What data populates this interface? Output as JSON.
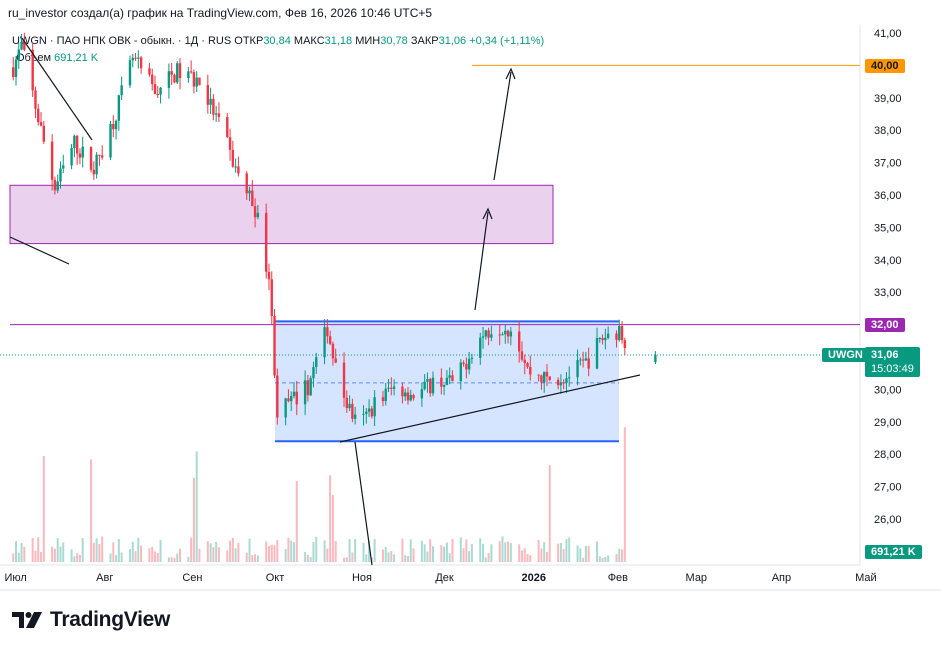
{
  "header": {
    "attribution": "ru_investor создал(а) график на TradingView.com, Фев 16, 2026 10:46 UTC+5"
  },
  "legend": {
    "symbol_line": "UWGN · ПАО НПК ОВК - обыкн. · 1Д · RUS",
    "open_label": "ОТКР",
    "open_value": "30,84",
    "high_label": "МАКС",
    "high_value": "31,18",
    "low_label": "МИН",
    "low_value": "30,78",
    "close_label": "ЗАКР",
    "close_value": "31,06",
    "change": "+0,34 (+1,11%)",
    "volume_label": "Объем",
    "volume_value": "691,21 K"
  },
  "price_axis": {
    "ticks": [
      "41,00",
      "40,00",
      "39,00",
      "38,00",
      "37,00",
      "36,00",
      "35,00",
      "34,00",
      "33,00",
      "32,00",
      "31,00",
      "30,00",
      "29,00",
      "28,00",
      "27,00",
      "26,00"
    ],
    "tag_40": "40,00",
    "tag_32": "32,00",
    "tag_symbol": "UWGN",
    "tag_last": "31,06",
    "tag_countdown": "15:03:49",
    "tag_volume": "691,21 K"
  },
  "time_axis": {
    "labels": [
      "Июл",
      "Авг",
      "Сен",
      "Окт",
      "Ноя",
      "Дек",
      "2026",
      "Фев",
      "Мар",
      "Апр",
      "Май"
    ]
  },
  "colors": {
    "up": "#089981",
    "down": "#f23645",
    "zone_fill": "#e1bee7",
    "zone_border": "#9c27b0",
    "channel_fill": "#cfe0ff",
    "channel_border": "#2962ff",
    "target_line": "#ff9800",
    "resistance_line": "#9c27b0"
  },
  "brand": {
    "logo_text": "TradingView"
  },
  "chart_data": {
    "type": "candlestick",
    "title": "UWGN · ПАО НПК ОВК - обыкн. · 1Д · RUS",
    "ylim": [
      25.5,
      41.2
    ],
    "y_ticks": [
      26,
      27,
      28,
      29,
      30,
      31,
      32,
      33,
      34,
      35,
      36,
      37,
      38,
      39,
      40,
      41
    ],
    "x_labels": [
      "Июл",
      "Авг",
      "Сен",
      "Окт",
      "Ноя",
      "Дек",
      "2026",
      "Фев",
      "Мар",
      "Апр",
      "Май"
    ],
    "last": {
      "open": 30.84,
      "high": 31.18,
      "low": 30.78,
      "close": 31.06,
      "volume": "691,21 K"
    },
    "price_path_approx": [
      {
        "date": "2025-06-28",
        "close": 39.5
      },
      {
        "date": "2025-07-03",
        "close": 40.6
      },
      {
        "date": "2025-07-10",
        "close": 38.0
      },
      {
        "date": "2025-07-15",
        "close": 36.2
      },
      {
        "date": "2025-07-22",
        "close": 37.6
      },
      {
        "date": "2025-07-29",
        "close": 36.8
      },
      {
        "date": "2025-08-05",
        "close": 38.3
      },
      {
        "date": "2025-08-12",
        "close": 40.2
      },
      {
        "date": "2025-08-20",
        "close": 39.2
      },
      {
        "date": "2025-08-28",
        "close": 39.8
      },
      {
        "date": "2025-09-05",
        "close": 39.5
      },
      {
        "date": "2025-09-12",
        "close": 38.2
      },
      {
        "date": "2025-09-18",
        "close": 36.8
      },
      {
        "date": "2025-09-25",
        "close": 35.6
      },
      {
        "date": "2025-09-30",
        "close": 33.5
      },
      {
        "date": "2025-10-03",
        "close": 29.3
      },
      {
        "date": "2025-10-08",
        "close": 29.6
      },
      {
        "date": "2025-10-14",
        "close": 30.1
      },
      {
        "date": "2025-10-21",
        "close": 31.9
      },
      {
        "date": "2025-10-25",
        "close": 30.2
      },
      {
        "date": "2025-11-01",
        "close": 28.8
      },
      {
        "date": "2025-11-08",
        "close": 29.7
      },
      {
        "date": "2025-11-15",
        "close": 30.1
      },
      {
        "date": "2025-11-22",
        "close": 29.8
      },
      {
        "date": "2025-11-29",
        "close": 30.3
      },
      {
        "date": "2025-12-06",
        "close": 30.2
      },
      {
        "date": "2025-12-13",
        "close": 31.4
      },
      {
        "date": "2025-12-20",
        "close": 32.0
      },
      {
        "date": "2025-12-27",
        "close": 31.9
      },
      {
        "date": "2026-01-01",
        "close": 30.6
      },
      {
        "date": "2026-01-08",
        "close": 30.3
      },
      {
        "date": "2026-01-15",
        "close": 30.4
      },
      {
        "date": "2026-01-22",
        "close": 30.8
      },
      {
        "date": "2026-01-28",
        "close": 31.6
      },
      {
        "date": "2026-02-02",
        "close": 31.8
      },
      {
        "date": "2026-02-06",
        "close": 31.5
      },
      {
        "date": "2026-02-11",
        "close": 30.7
      },
      {
        "date": "2026-02-16",
        "close": 31.06
      }
    ],
    "annotations": {
      "zone_top": 36.3,
      "zone_bottom": 34.5,
      "channel_top": 32.1,
      "channel_bottom": 28.4,
      "channel_mid": 30.2,
      "resistance": 32.0,
      "target": 40.0,
      "last_price_line": 31.06
    }
  }
}
